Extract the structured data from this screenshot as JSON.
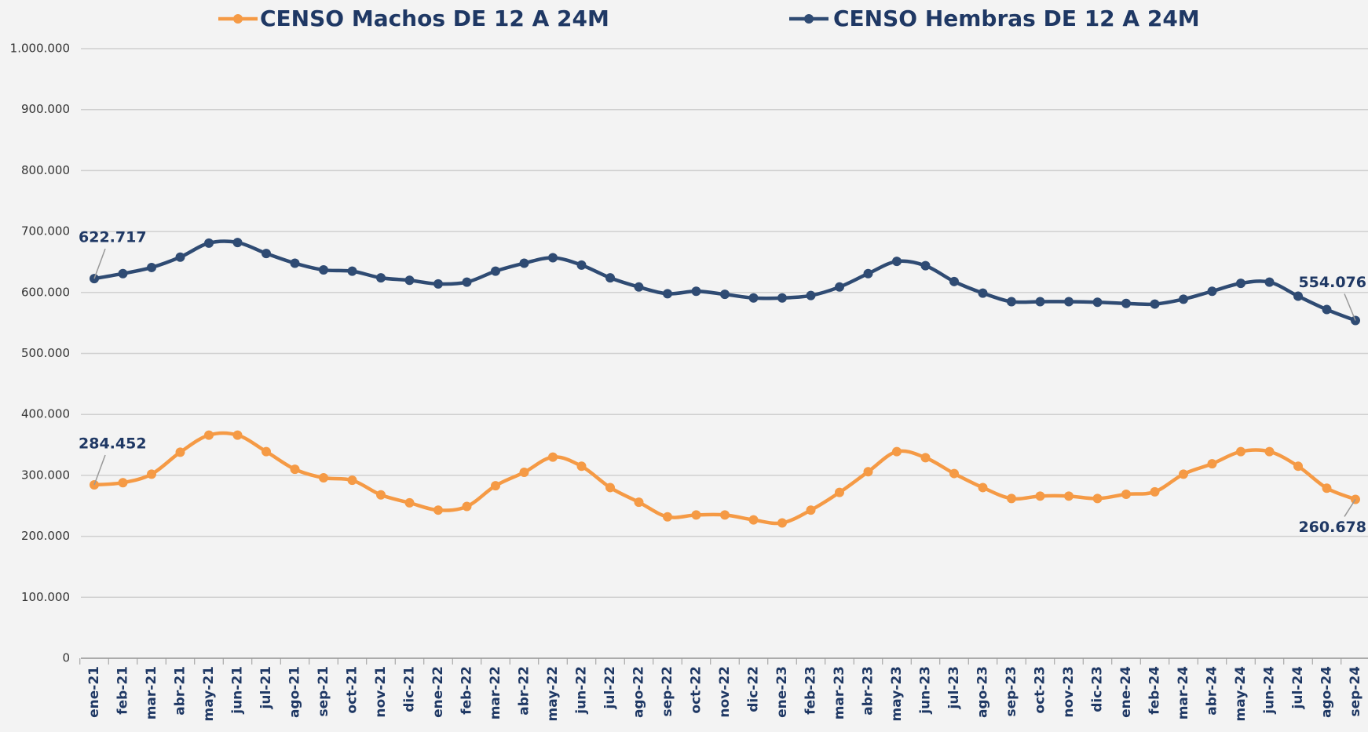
{
  "chart_data": {
    "type": "line",
    "categories": [
      "ene-21",
      "feb-21",
      "mar-21",
      "abr-21",
      "may-21",
      "jun-21",
      "jul-21",
      "ago-21",
      "sep-21",
      "oct-21",
      "nov-21",
      "dic-21",
      "ene-22",
      "feb-22",
      "mar-22",
      "abr-22",
      "may-22",
      "jun-22",
      "jul-22",
      "ago-22",
      "sep-22",
      "oct-22",
      "nov-22",
      "dic-22",
      "ene-23",
      "feb-23",
      "mar-23",
      "abr-23",
      "may-23",
      "jun-23",
      "jul-23",
      "ago-23",
      "sep-23",
      "oct-23",
      "nov-23",
      "dic-23",
      "ene-24",
      "feb-24",
      "mar-24",
      "abr-24",
      "may-24",
      "jun-24",
      "jul-24",
      "ago-24",
      "sep-24"
    ],
    "series": [
      {
        "name": "CENSO Machos DE 12 A 24M",
        "color": "#f59a45",
        "values": [
          284452,
          288000,
          302000,
          338000,
          366000,
          366000,
          339000,
          310000,
          296000,
          292000,
          268000,
          255000,
          243000,
          249000,
          283000,
          305000,
          330000,
          315000,
          280000,
          256000,
          232000,
          235000,
          235000,
          227000,
          222000,
          243000,
          272000,
          306000,
          339000,
          329000,
          303000,
          280000,
          262000,
          266000,
          266000,
          262000,
          269000,
          273000,
          302000,
          319000,
          339000,
          339000,
          315000,
          279000,
          260678
        ],
        "value_labels": [
          "284.452",
          null,
          null,
          null,
          null,
          null,
          null,
          null,
          null,
          null,
          null,
          null,
          null,
          null,
          null,
          null,
          null,
          null,
          null,
          null,
          null,
          null,
          null,
          null,
          null,
          null,
          null,
          null,
          null,
          null,
          null,
          null,
          null,
          null,
          null,
          null,
          null,
          null,
          null,
          null,
          null,
          null,
          null,
          null,
          "260.678"
        ]
      },
      {
        "name": "CENSO Hembras DE 12 A 24M",
        "color": "#2f4b73",
        "values": [
          622717,
          631000,
          641000,
          658000,
          681000,
          682000,
          664000,
          648000,
          637000,
          635000,
          624000,
          620000,
          614000,
          617000,
          635000,
          648000,
          657000,
          645000,
          624000,
          609000,
          598000,
          602000,
          597000,
          591000,
          591000,
          595000,
          609000,
          631000,
          651000,
          644000,
          618000,
          599000,
          585000,
          585000,
          585000,
          584000,
          582000,
          581000,
          589000,
          602000,
          615000,
          617000,
          594000,
          572000,
          554076
        ],
        "value_labels": [
          "622.717",
          null,
          null,
          null,
          null,
          null,
          null,
          null,
          null,
          null,
          null,
          null,
          null,
          null,
          null,
          null,
          null,
          null,
          null,
          null,
          null,
          null,
          null,
          null,
          null,
          null,
          null,
          null,
          null,
          null,
          null,
          null,
          null,
          null,
          null,
          null,
          null,
          null,
          null,
          null,
          null,
          null,
          null,
          null,
          "554.076"
        ]
      }
    ],
    "ylim": [
      0,
      1000000
    ],
    "yticks": [
      0,
      {
        "value": 100000,
        "label": "100.000"
      },
      {
        "value": 200000,
        "label": "200.000"
      },
      {
        "value": 300000,
        "label": "300.000"
      },
      {
        "value": 400000,
        "label": "400.000"
      },
      {
        "value": 500000,
        "label": "500.000"
      },
      {
        "value": 600000,
        "label": "600.000"
      },
      {
        "value": 700000,
        "label": "700.000"
      },
      {
        "value": 800000,
        "label": "800.000"
      },
      {
        "value": 900000,
        "label": "900.000"
      },
      {
        "value": 1000000,
        "label": "1.000.000"
      }
    ],
    "grid": true,
    "legend": "top"
  }
}
